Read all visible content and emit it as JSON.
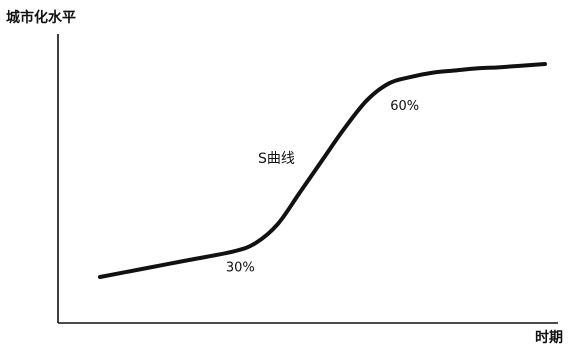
{
  "chart_data": {
    "type": "line",
    "title": "",
    "ylabel": "城市化水平",
    "xlabel": "时期",
    "grid": false,
    "legend": "none",
    "xlim": [
      0,
      100
    ],
    "ylim": [
      0,
      100
    ],
    "series": [
      {
        "label": "S曲线",
        "color": "#111111",
        "x": [
          0,
          10,
          20,
          30,
          35,
          40,
          45,
          50,
          55,
          60,
          65,
          70,
          75,
          80,
          85,
          90,
          100
        ],
        "y": [
          0,
          4,
          8,
          12,
          16,
          25,
          40,
          55,
          70,
          83,
          91,
          94,
          96,
          97,
          98,
          98.5,
          100
        ]
      }
    ],
    "annotations": [
      {
        "text": "30%",
        "x": 31,
        "y": 12
      },
      {
        "text": "60%",
        "x": 67,
        "y": 85
      }
    ]
  }
}
